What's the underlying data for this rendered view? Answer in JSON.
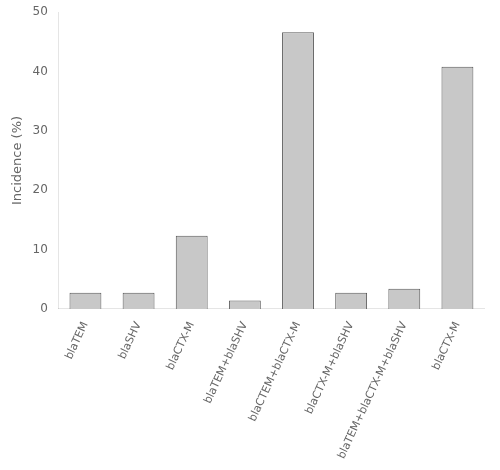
{
  "chart_data": {
    "type": "bar",
    "ylabel": "Incidence (%)",
    "categories": [
      "blaTEM",
      "blaSHV",
      "blaCTX-M",
      "blaTEM+blaSHV",
      "blaCTEM+blaCTX-M",
      "blaCTX-M+blaSHV",
      "blaTEM+blaCTX-M+blaSHV",
      "blaCTX-M"
    ],
    "values": [
      2.7,
      2.7,
      12.3,
      1.4,
      46.6,
      2.7,
      3.4,
      40.8
    ],
    "color": "#c8c8c8",
    "ylim": [
      0,
      50
    ],
    "yticks": [
      0,
      10,
      20,
      30,
      40,
      50
    ],
    "grid": false
  }
}
